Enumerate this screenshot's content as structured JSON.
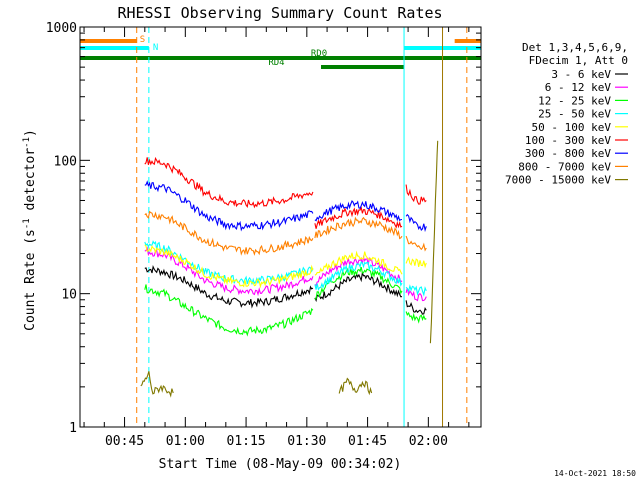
{
  "chart_data": {
    "type": "line",
    "title": "RHESSI Observing Summary Count Rates",
    "xlabel": "Start Time (08-May-09 00:34:02)",
    "ylabel": "Count Rate (s⁻¹ detector⁻¹)",
    "ylabel_parts": {
      "main": "Count Rate (s",
      "exp1": "-1",
      "mid": " detector",
      "exp2": "-1",
      "end": ")"
    },
    "y_scale": "log",
    "ylim": [
      1,
      1000
    ],
    "xlim_minutes": [
      34.0,
      133.0
    ],
    "y_ticks": [
      {
        "value": 1,
        "label": "1"
      },
      {
        "value": 10,
        "label": "10"
      },
      {
        "value": 100,
        "label": "100"
      },
      {
        "value": 1000,
        "label": "1000"
      }
    ],
    "x_ticks": [
      {
        "minute": 45,
        "label": "00:45"
      },
      {
        "minute": 60,
        "label": "01:00"
      },
      {
        "minute": 75,
        "label": "01:15"
      },
      {
        "minute": 90,
        "label": "01:30"
      },
      {
        "minute": 105,
        "label": "01:45"
      },
      {
        "minute": 120,
        "label": "02:00"
      }
    ],
    "legend_header": [
      "Det 1,3,4,5,6,9,",
      "FDecim 1, Att 0"
    ],
    "legend_position": "right",
    "timestamp": "14-Oct-2021 18:50",
    "flags": [
      {
        "label": "S",
        "color": "#ff8000",
        "intervals": [
          [
            34.0,
            48.0
          ],
          [
            126.5,
            133.0
          ]
        ]
      },
      {
        "label": "N",
        "color": "#00ffff",
        "intervals": [
          [
            34.0,
            51.0
          ],
          [
            114.0,
            133.0
          ]
        ]
      },
      {
        "label": "RD0",
        "color": "#008000",
        "intervals": [
          [
            34.0,
            114.0
          ],
          [
            114.0,
            133.0
          ]
        ]
      },
      {
        "label": "RD4",
        "color": "#008000",
        "intervals": [
          [
            93.5,
            114.0
          ]
        ]
      }
    ],
    "vertical_lines": [
      {
        "minute": 48.0,
        "color": "#ff8000",
        "dashed": true
      },
      {
        "minute": 51.0,
        "color": "#00ffff",
        "dashed": true
      },
      {
        "minute": 114.0,
        "color": "#00ffff",
        "dashed": false
      },
      {
        "minute": 123.5,
        "color": "#a07800",
        "dashed": false
      },
      {
        "minute": 129.5,
        "color": "#ff8000",
        "dashed": true
      }
    ],
    "series": [
      {
        "name": "3 - 6 keV",
        "color": "#000000",
        "segments": [
          {
            "x": [
              50,
              55,
              60,
              65,
              70,
              75,
              80,
              85,
              91.5
            ],
            "y": [
              15.5,
              14.5,
              12.5,
              10,
              8.8,
              8.5,
              8.7,
              9.5,
              11
            ]
          },
          {
            "x": [
              92,
              96,
              100,
              104,
              108,
              113.5
            ],
            "y": [
              9,
              10.5,
              12.5,
              13.5,
              12,
              9.5
            ]
          },
          {
            "x": [
              114.5,
              117,
              119.5
            ],
            "y": [
              8.5,
              7.5,
              7.5
            ]
          }
        ]
      },
      {
        "name": "6 - 12 keV",
        "color": "#ff00ff",
        "segments": [
          {
            "x": [
              50,
              55,
              60,
              65,
              70,
              75,
              80,
              85,
              91.5
            ],
            "y": [
              21,
              19.5,
              16,
              12.5,
              11,
              10.5,
              10.7,
              11.5,
              13.5
            ]
          },
          {
            "x": [
              92,
              96,
              100,
              104,
              108,
              113.5
            ],
            "y": [
              12,
              15,
              17.5,
              18,
              16,
              12.5
            ]
          },
          {
            "x": [
              114.5,
              117,
              119.5
            ],
            "y": [
              10.5,
              9.5,
              9.5
            ]
          }
        ]
      },
      {
        "name": "12 - 25 keV",
        "color": "#00ff00",
        "segments": [
          {
            "x": [
              50,
              55,
              60,
              65,
              70,
              75,
              80,
              85,
              91.5
            ],
            "y": [
              11,
              10,
              8,
              6.5,
              5.5,
              5.2,
              5.4,
              6,
              7.5
            ]
          },
          {
            "x": [
              92,
              96,
              100,
              104,
              108,
              113.5
            ],
            "y": [
              9.5,
              12.5,
              14.5,
              15,
              13.5,
              10.5
            ]
          },
          {
            "x": [
              114.5,
              117,
              119.5
            ],
            "y": [
              7,
              6.5,
              6.5
            ]
          }
        ]
      },
      {
        "name": "25 - 50 keV",
        "color": "#00ffff",
        "segments": [
          {
            "x": [
              50,
              55,
              60,
              65,
              70,
              75,
              80,
              85,
              91.5
            ],
            "y": [
              24,
              22,
              18,
              14.5,
              13,
              12.5,
              12.7,
              13.5,
              15.5
            ]
          },
          {
            "x": [
              92,
              96,
              100,
              104,
              108,
              113.5
            ],
            "y": [
              11,
              13,
              15.5,
              16.5,
              15,
              12
            ]
          },
          {
            "x": [
              114.5,
              117,
              119.5
            ],
            "y": [
              11.5,
              10.5,
              10.5
            ]
          }
        ]
      },
      {
        "name": "50 - 100 keV",
        "color": "#ffff00",
        "segments": [
          {
            "x": [
              50,
              55,
              60,
              65,
              70,
              75,
              80,
              85,
              91.5
            ],
            "y": [
              22,
              20.5,
              17.5,
              14,
              12.5,
              12,
              12.2,
              13,
              15
            ]
          },
          {
            "x": [
              92,
              96,
              100,
              104,
              108,
              113.5
            ],
            "y": [
              13.5,
              16.5,
              19,
              19.5,
              17.5,
              14
            ]
          },
          {
            "x": [
              114.5,
              117,
              119.5
            ],
            "y": [
              18,
              17,
              17
            ]
          }
        ]
      },
      {
        "name": "100 - 300 keV",
        "color": "#ff0000",
        "segments": [
          {
            "x": [
              50,
              55,
              60,
              65,
              70,
              75,
              80,
              85,
              91.5
            ],
            "y": [
              100,
              95,
              75,
              57,
              49,
              47,
              48,
              51,
              58
            ]
          },
          {
            "x": [
              92,
              96,
              100,
              104,
              108,
              113.5
            ],
            "y": [
              32,
              37,
              41,
              42,
              39,
              32
            ]
          },
          {
            "x": [
              114.5,
              117,
              119.5
            ],
            "y": [
              62,
              50,
              50
            ]
          }
        ]
      },
      {
        "name": "300 - 800 keV",
        "color": "#0000ff",
        "segments": [
          {
            "x": [
              50,
              55,
              60,
              65,
              70,
              75,
              80,
              85,
              91.5
            ],
            "y": [
              65,
              62,
              50,
              38,
              33,
              32,
              33,
              35,
              40
            ]
          },
          {
            "x": [
              92,
              96,
              100,
              104,
              108,
              113.5
            ],
            "y": [
              37,
              42,
              46,
              47,
              43,
              36
            ]
          },
          {
            "x": [
              114.5,
              117,
              119.5
            ],
            "y": [
              38,
              32,
              32
            ]
          }
        ]
      },
      {
        "name": "800 - 7000 keV",
        "color": "#ff8000",
        "segments": [
          {
            "x": [
              50,
              55,
              60,
              65,
              70,
              75,
              80,
              85,
              91.5
            ],
            "y": [
              40,
              38,
              31,
              25,
              22,
              21,
              21.5,
              23,
              26
            ]
          },
          {
            "x": [
              92,
              96,
              100,
              104,
              108,
              113.5
            ],
            "y": [
              27,
              31,
              34,
              35,
              33,
              27
            ]
          },
          {
            "x": [
              114.5,
              117,
              119.5
            ],
            "y": [
              26,
              22,
              22
            ]
          }
        ]
      },
      {
        "name": "7000 - 15000 keV",
        "color": "#807800",
        "segments": [
          {
            "x": [
              49,
              51,
              52,
              54,
              57
            ],
            "y": [
              2,
              2.5,
              1.8,
              2,
              1.8
            ]
          },
          {
            "x": [
              98,
              100,
              102,
              104,
              106
            ],
            "y": [
              1.8,
              2.2,
              1.9,
              2.2,
              1.8
            ]
          },
          {
            "x": [
              120.5,
              121,
              121.5,
              122,
              122.3
            ],
            "y": [
              4,
              10,
              30,
              80,
              140
            ]
          }
        ]
      }
    ]
  }
}
